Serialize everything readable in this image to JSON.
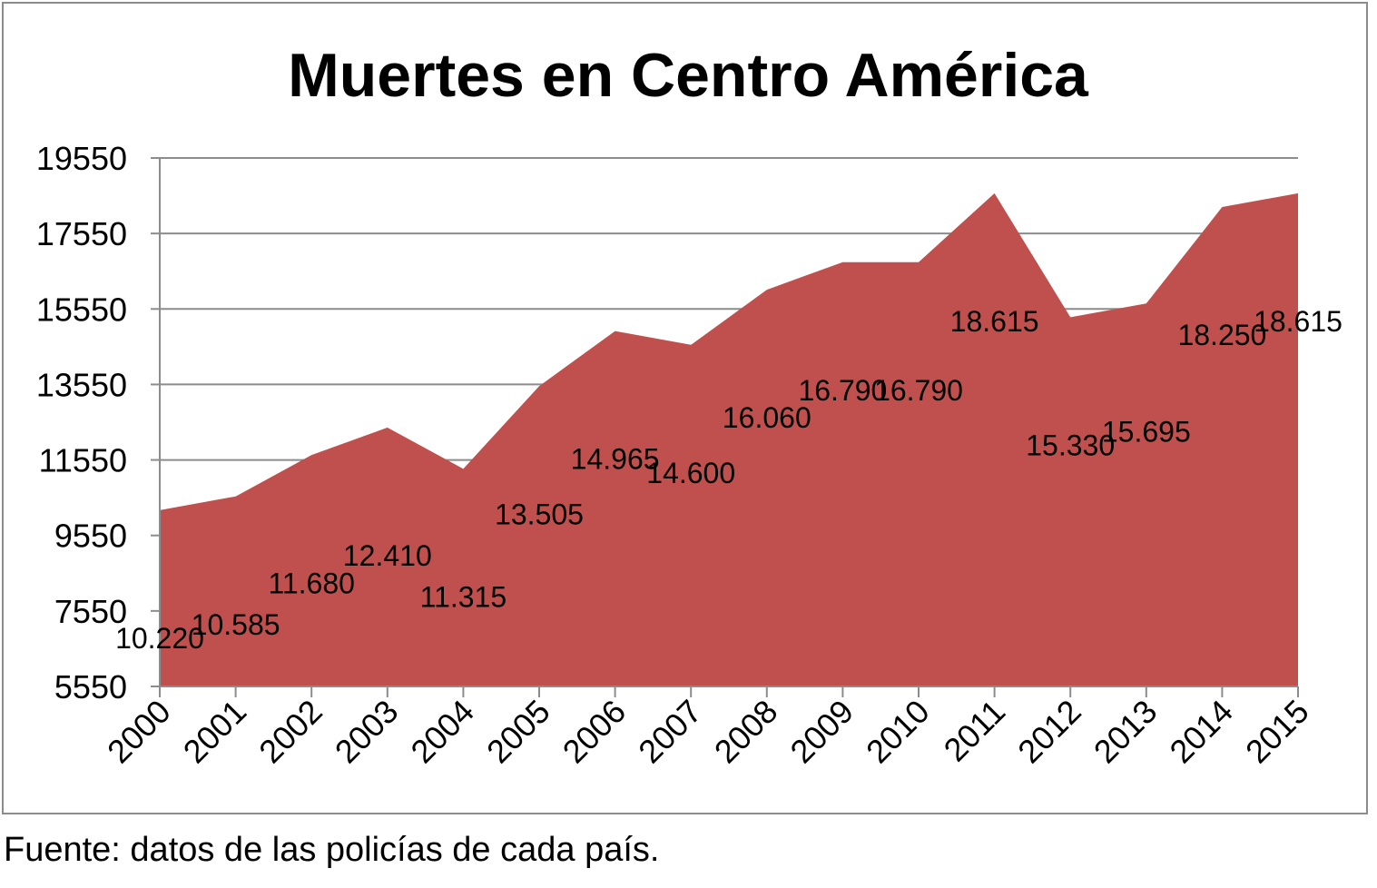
{
  "chart_data": {
    "type": "area",
    "title": "Muertes en Centro América",
    "xlabel": "",
    "ylabel": "",
    "categories": [
      "2000",
      "2001",
      "2002",
      "2003",
      "2004",
      "2005",
      "2006",
      "2007",
      "2008",
      "2009",
      "2010",
      "2011",
      "2012",
      "2013",
      "2014",
      "2015"
    ],
    "values": [
      10220,
      10585,
      11680,
      12410,
      11315,
      13505,
      14965,
      14600,
      16060,
      16790,
      16790,
      18615,
      15330,
      15695,
      18250,
      18615
    ],
    "data_labels": [
      "10.220",
      "10.585",
      "11.680",
      "12.410",
      "11.315",
      "13.505",
      "14.965",
      "14.600",
      "16.060",
      "16.790",
      "16.790",
      "18.615",
      "15.330",
      "15.695",
      "18.250",
      "18.615"
    ],
    "ylim": [
      5550,
      19550
    ],
    "yticks": [
      5550,
      7550,
      9550,
      11550,
      13550,
      15550,
      17550,
      19550
    ],
    "ytick_labels": [
      "5550",
      "7550",
      "9550",
      "11550",
      "13550",
      "15550",
      "17550",
      "19550"
    ],
    "grid": true,
    "legend": "none",
    "fill_color": "#C0504D",
    "grid_color": "#8c8c8c"
  },
  "footer": {
    "source": "Fuente: datos de las policías de cada país."
  }
}
